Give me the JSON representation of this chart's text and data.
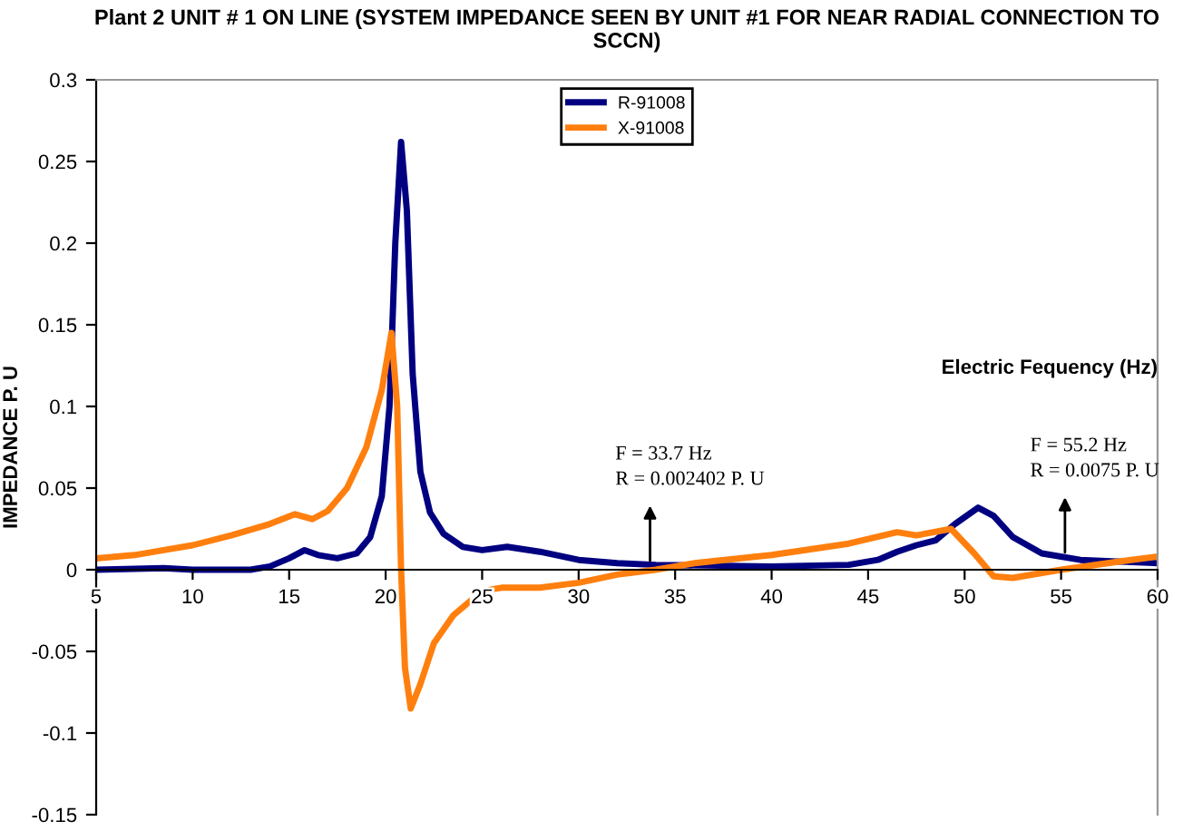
{
  "chart_data": {
    "type": "line",
    "title": "Plant 2 UNIT # 1 ON LINE (SYSTEM IMPEDANCE SEEN BY UNIT #1 FOR NEAR RADIAL CONNECTION TO SCCN)",
    "xlabel": "Electric Fequency (Hz)",
    "ylabel": "IMPEDANCE P. U",
    "series": [
      {
        "name": "R-91008",
        "color": "#000080",
        "x": [
          5,
          8.5,
          10,
          13,
          14,
          15,
          15.8,
          16.5,
          17.5,
          18.5,
          19.2,
          19.8,
          20.2,
          20.5,
          20.8,
          21.1,
          21.4,
          21.8,
          22.3,
          23,
          24,
          25,
          26.3,
          28,
          30,
          32,
          34,
          40,
          44,
          45.5,
          46.5,
          47.5,
          48.5,
          49.5,
          50.7,
          51.5,
          52.5,
          54,
          56,
          60
        ],
        "values": [
          0.0,
          0.001,
          0.0,
          0.0,
          0.002,
          0.007,
          0.012,
          0.009,
          0.007,
          0.01,
          0.02,
          0.045,
          0.1,
          0.2,
          0.262,
          0.22,
          0.12,
          0.06,
          0.035,
          0.022,
          0.014,
          0.012,
          0.014,
          0.011,
          0.006,
          0.004,
          0.003,
          0.002,
          0.003,
          0.006,
          0.011,
          0.015,
          0.018,
          0.028,
          0.038,
          0.033,
          0.02,
          0.01,
          0.006,
          0.004
        ]
      },
      {
        "name": "X-91008",
        "color": "#ff7f0e",
        "x": [
          5,
          7,
          8.5,
          10,
          12,
          14,
          15.3,
          16.2,
          17,
          18,
          19,
          19.8,
          20.3,
          20.6,
          20.8,
          21,
          21.3,
          21.8,
          22.5,
          23.5,
          24.5,
          25.5,
          26,
          28,
          30,
          32,
          34,
          36,
          40,
          44,
          46.5,
          47.5,
          49.3,
          50.5,
          51.5,
          52.5,
          55,
          58,
          60
        ],
        "values": [
          0.007,
          0.009,
          0.012,
          0.015,
          0.021,
          0.028,
          0.034,
          0.031,
          0.036,
          0.05,
          0.075,
          0.11,
          0.145,
          0.1,
          0.0,
          -0.06,
          -0.085,
          -0.07,
          -0.045,
          -0.028,
          -0.018,
          -0.012,
          -0.011,
          -0.011,
          -0.008,
          -0.003,
          0.0,
          0.004,
          0.009,
          0.016,
          0.023,
          0.021,
          0.025,
          0.01,
          -0.004,
          -0.005,
          0.0,
          0.005,
          0.008
        ]
      }
    ],
    "xlim": [
      5,
      60
    ],
    "xticks": [
      5,
      10,
      15,
      20,
      25,
      30,
      35,
      40,
      45,
      50,
      55,
      60
    ],
    "ylim": [
      -0.15,
      0.3
    ],
    "yticks": [
      -0.15,
      -0.1,
      -0.05,
      0,
      0.05,
      0.1,
      0.15,
      0.2,
      0.25,
      0.3
    ],
    "annotations": [
      {
        "text": "F = 33.7 Hz\nR = 0.002402 P. U",
        "x": 33.7,
        "y": 0.002402
      },
      {
        "text": "F = 55.2 Hz\nR = 0.0075 P. U",
        "x": 55.2,
        "y": 0.0075
      }
    ],
    "grid": false,
    "legend": "top",
    "marker": "none",
    "line_style": "solid"
  }
}
